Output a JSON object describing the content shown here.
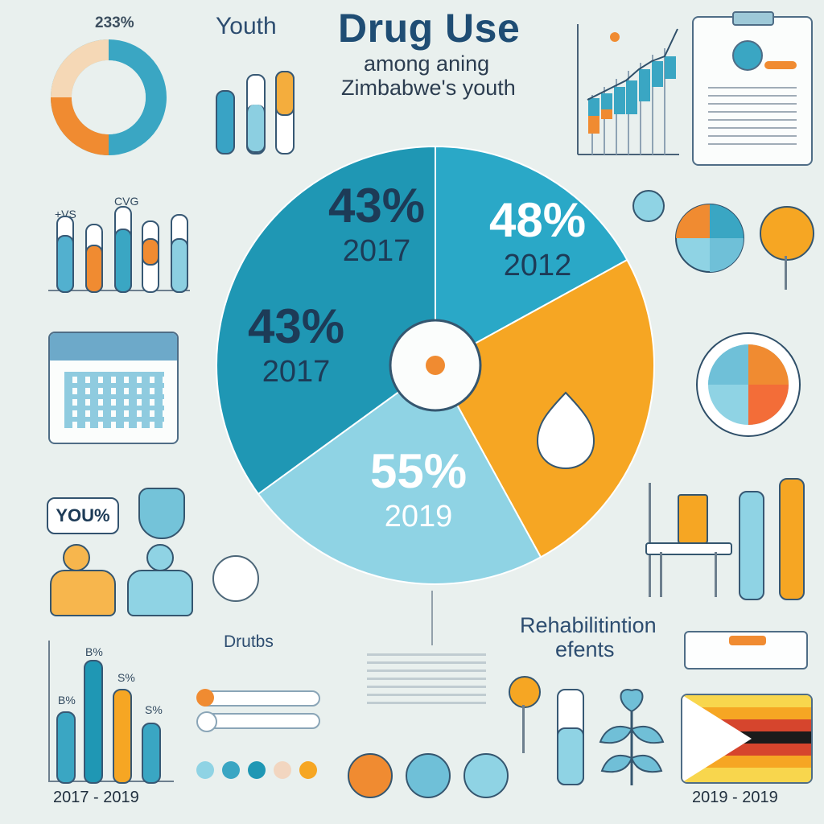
{
  "header": {
    "title": "Drug Use",
    "subtitle_line1": "among aning",
    "subtitle_line2": "Zimbabwe's youth",
    "top_left_percent": "233%",
    "top_label": "Youth"
  },
  "chart_data": {
    "type": "pie",
    "slices": [
      {
        "label": "43% 2017",
        "percent": "43%",
        "year": "2017",
        "value": 17,
        "color": "#2aa8c7"
      },
      {
        "label": "48% 2012",
        "percent": "48%",
        "year": "2012",
        "value": 25,
        "color": "#f6a623"
      },
      {
        "label": "43% 2017",
        "percent": "43%",
        "year": "2017",
        "value": 23,
        "color": "#8fd3e4"
      },
      {
        "label": "55% 2019",
        "percent": "55%",
        "year": "2019",
        "value": 35,
        "color": "#1f97b4"
      }
    ]
  },
  "left": {
    "youth_chip": "YOU%",
    "bottom_chart_labels": [
      "B%",
      "B%",
      "S%",
      "S%"
    ],
    "bottom_chart_caption": "2017 - 2019",
    "small_bar_labels": [
      "+VS",
      "CVG"
    ]
  },
  "middle": {
    "drugs_label": "Drutbs"
  },
  "right": {
    "rehab_line1": "Rehabilitintion",
    "rehab_line2": "efents",
    "flag_caption": "2019 - 2019"
  },
  "colors": {
    "teal": "#2aa8c7",
    "light_teal": "#8fd3e4",
    "orange": "#f6a623",
    "dark_orange": "#f07b2a",
    "navy": "#1f4d74",
    "background": "#e9f0ee"
  }
}
